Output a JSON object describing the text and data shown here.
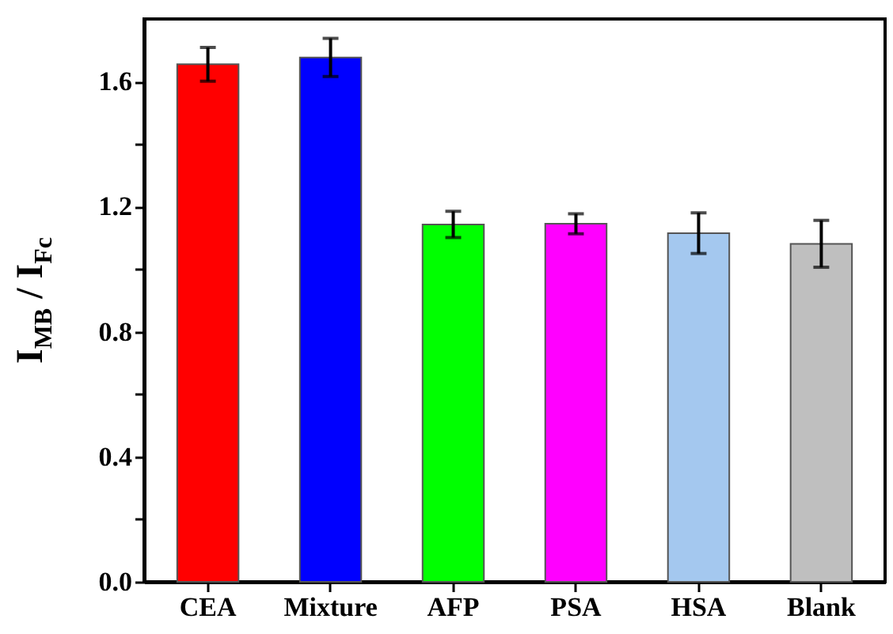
{
  "chart_data": {
    "type": "bar",
    "ylabel": "I$_{MB}$ / I$_{Fc}$",
    "categories": [
      "CEA",
      "Mixture",
      "AFP",
      "PSA",
      "HSA",
      "Blank"
    ],
    "values": [
      1.655,
      1.677,
      1.143,
      1.145,
      1.115,
      1.081
    ],
    "errors": [
      0.054,
      0.061,
      0.042,
      0.032,
      0.065,
      0.075
    ],
    "colors": [
      "#ff0000",
      "#0000ff",
      "#00ff00",
      "#ff00ff",
      "#a4c8ef",
      "#bfbfbf"
    ],
    "ylim": [
      0,
      1.8
    ],
    "yticks": [
      {
        "value": 0,
        "label": "0.0"
      },
      {
        "value": 0.2,
        "label": null
      },
      {
        "value": 0.4,
        "label": "0.4"
      },
      {
        "value": 0.6,
        "label": null
      },
      {
        "value": 0.8,
        "label": "0.8"
      },
      {
        "value": 1.0,
        "label": null
      },
      {
        "value": 1.2,
        "label": "1.2"
      },
      {
        "value": 1.4,
        "label": null
      },
      {
        "value": 1.6,
        "label": "1.6"
      }
    ]
  }
}
